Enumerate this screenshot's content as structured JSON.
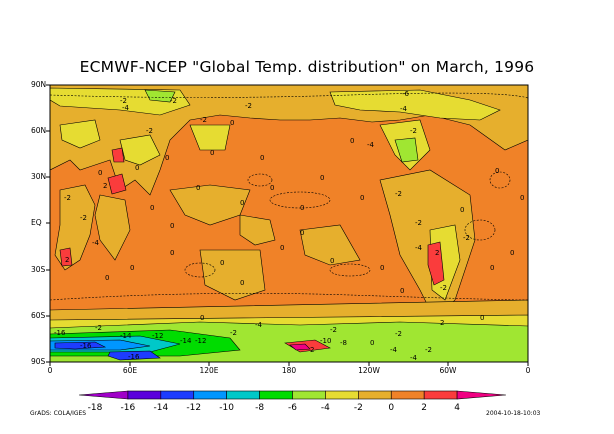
{
  "title": "ECMWF-NCEP \"Global Temp. distribution\" on March, 1996",
  "lat_labels": [
    "90N",
    "60N",
    "30N",
    "EQ",
    "30S",
    "60S",
    "90S"
  ],
  "lon_labels": [
    "0",
    "60E",
    "120E",
    "180",
    "120W",
    "60W",
    "0"
  ],
  "colorbar": {
    "labels": [
      "-18",
      "-16",
      "-14",
      "-12",
      "-10",
      "-8",
      "-6",
      "-4",
      "-2",
      "0",
      "2",
      "4"
    ],
    "colors": [
      "#a000c8",
      "#5a00dc",
      "#1e3cff",
      "#0096ff",
      "#00c8c8",
      "#00dc00",
      "#a0e632",
      "#e6dc32",
      "#e6af2d",
      "#f08228",
      "#fa3c3c",
      "#f00082"
    ]
  },
  "contour_labels": [
    "-2",
    "-4",
    "-2",
    "-2",
    "-6",
    "0",
    "0",
    "-2",
    "-4",
    "-2",
    "-2",
    "-4",
    "-2",
    "0",
    "2",
    "0",
    "-4",
    "-2",
    "0",
    "-2",
    "-2",
    "-2",
    "0",
    "0",
    "2",
    "2",
    "-4",
    "-2",
    "0",
    "0",
    "0",
    "0",
    "0",
    "0",
    "0",
    "0",
    "0",
    "0",
    "0",
    "0",
    "0",
    "0",
    "0",
    "0",
    "0",
    "0",
    "0",
    "0",
    "0",
    "0",
    "0",
    "-2",
    "-2",
    "2",
    "0",
    "0",
    "-2",
    "-4",
    "-14",
    "-16",
    "-16",
    "-12",
    "-14",
    "-12",
    "-16",
    "-4",
    "-2",
    "-2",
    "-4",
    "-8",
    "-10",
    "0",
    "2"
  ],
  "footer": {
    "left": "GrADS: COLA/IGES",
    "right": "2004-10-18-10:03"
  },
  "colors": {
    "land_warm": "#f08228",
    "mild": "#e6af2d",
    "cool": "#e6dc32",
    "cold": "#a0e632"
  }
}
